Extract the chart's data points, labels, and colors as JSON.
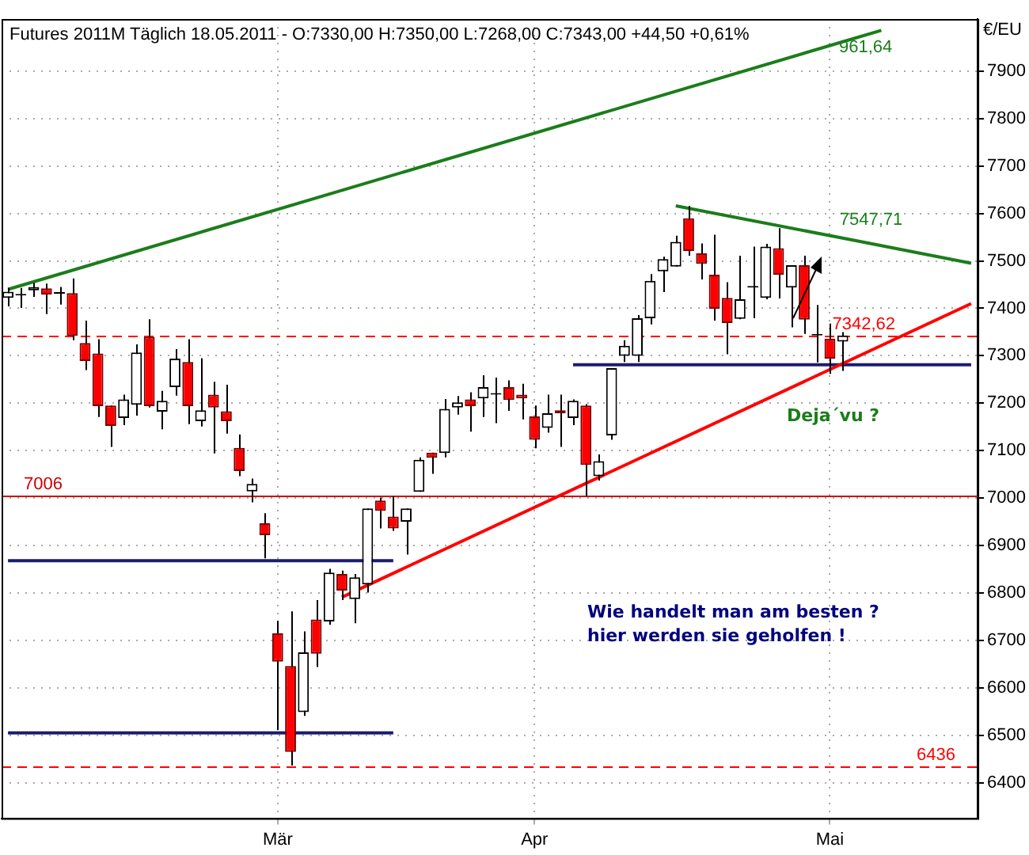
{
  "chart_data": {
    "type": "candlestick",
    "title": "Futures 2011M Täglich  18.05.2011 - O:7330,00 H:7350,00 L:7268,00 C:7343,00 +44,50 +0,61%",
    "ylabel": "€/EU",
    "categories": [
      null,
      null,
      null,
      null,
      null,
      null,
      null,
      null,
      null,
      null,
      null,
      null,
      null,
      null,
      null,
      null,
      null,
      null,
      null,
      null,
      null,
      "Mär",
      null,
      null,
      null,
      null,
      null,
      null,
      null,
      null,
      null,
      null,
      null,
      null,
      null,
      null,
      null,
      null,
      null,
      null,
      null,
      "Apr",
      null,
      null,
      null,
      null,
      null,
      null,
      null,
      null,
      null,
      null,
      null,
      null,
      null,
      null,
      null,
      null,
      null,
      null,
      null,
      null,
      null,
      null,
      "Mai",
      null,
      null,
      null,
      null,
      null,
      null,
      null,
      null,
      null,
      null,
      null
    ],
    "ohlc": [
      [
        7422,
        7443,
        7404,
        7435
      ],
      [
        7427,
        7443,
        7401,
        7427
      ],
      [
        7438,
        7454,
        7424,
        7445
      ],
      [
        7442,
        7452,
        7388,
        7429
      ],
      [
        7431,
        7445,
        7408,
        7431
      ],
      [
        7432,
        7463,
        7333,
        7342
      ],
      [
        7327,
        7374,
        7270,
        7289
      ],
      [
        7305,
        7335,
        7171,
        7194
      ],
      [
        7195,
        7195,
        7108,
        7152
      ],
      [
        7169,
        7218,
        7154,
        7208
      ],
      [
        7197,
        7324,
        7174,
        7307
      ],
      [
        7340,
        7377,
        7191,
        7194
      ],
      [
        7182,
        7226,
        7145,
        7205
      ],
      [
        7234,
        7314,
        7216,
        7294
      ],
      [
        7287,
        7335,
        7156,
        7194
      ],
      [
        7162,
        7295,
        7151,
        7185
      ],
      [
        7218,
        7245,
        7094,
        7191
      ],
      [
        7183,
        7239,
        7136,
        7162
      ],
      [
        7106,
        7134,
        7046,
        7057
      ],
      [
        7014,
        7041,
        6991,
        7030
      ],
      [
        6947,
        6968,
        6873,
        6922
      ],
      [
        6715,
        6741,
        6511,
        6655
      ],
      [
        6646,
        6761,
        6436,
        6465
      ],
      [
        6549,
        6719,
        6541,
        6675
      ],
      [
        6744,
        6785,
        6644,
        6672
      ],
      [
        6740,
        6851,
        6733,
        6843
      ],
      [
        6840,
        6847,
        6785,
        6805
      ],
      [
        6787,
        6840,
        6736,
        6833
      ],
      [
        6818,
        6978,
        6801,
        6978
      ],
      [
        6995,
        7001,
        6936,
        6973
      ],
      [
        6961,
        7003,
        6931,
        6936
      ],
      [
        6950,
        6978,
        6881,
        6978
      ],
      [
        7013,
        7086,
        7013,
        7081
      ],
      [
        7096,
        7096,
        7051,
        7085
      ],
      [
        7095,
        7209,
        7086,
        7188
      ],
      [
        7191,
        7215,
        7176,
        7202
      ],
      [
        7208,
        7223,
        7140,
        7194
      ],
      [
        7210,
        7259,
        7171,
        7234
      ],
      [
        7218,
        7254,
        7158,
        7218
      ],
      [
        7234,
        7248,
        7184,
        7207
      ],
      [
        7218,
        7241,
        7166,
        7210
      ],
      [
        7172,
        7195,
        7105,
        7123
      ],
      [
        7148,
        7218,
        7138,
        7179
      ],
      [
        7185,
        7218,
        7108,
        7179
      ],
      [
        7169,
        7208,
        7154,
        7205
      ],
      [
        7195,
        7198,
        7004,
        7070
      ],
      [
        7046,
        7092,
        7037,
        7078
      ],
      [
        7132,
        7274,
        7123,
        7274
      ],
      [
        7300,
        7333,
        7287,
        7321
      ],
      [
        7300,
        7386,
        7287,
        7379
      ],
      [
        7379,
        7472,
        7366,
        7458
      ],
      [
        7478,
        7509,
        7434,
        7504
      ],
      [
        7488,
        7553,
        7488,
        7540
      ],
      [
        7590,
        7616,
        7511,
        7521
      ],
      [
        7516,
        7537,
        7461,
        7494
      ],
      [
        7471,
        7555,
        7374,
        7399
      ],
      [
        7422,
        7455,
        7303,
        7369
      ],
      [
        7378,
        7511,
        7377,
        7419
      ],
      [
        7444,
        7530,
        7379,
        7444
      ],
      [
        7422,
        7536,
        7419,
        7530
      ],
      [
        7527,
        7569,
        7421,
        7471
      ],
      [
        7444,
        7491,
        7360,
        7491
      ],
      [
        7491,
        7511,
        7346,
        7376
      ],
      [
        7343,
        7407,
        7286,
        7343
      ],
      [
        7336,
        7368,
        7262,
        7294
      ],
      [
        7330,
        7350,
        7268,
        7343
      ],
      null,
      null,
      null,
      null,
      null,
      null,
      null,
      null,
      null,
      null
    ],
    "series": [
      {
        "type": "line",
        "color": "#1b7d1b",
        "values": [
          7440,
          null,
          null,
          null,
          null,
          null,
          null,
          null,
          null,
          null,
          null,
          null,
          null,
          null,
          null,
          null,
          null,
          null,
          null,
          null,
          null,
          null,
          null,
          null,
          null,
          null,
          null,
          null,
          null,
          null,
          null,
          null,
          null,
          null,
          null,
          null,
          null,
          null,
          null,
          null,
          null,
          null,
          null,
          null,
          null,
          null,
          null,
          null,
          null,
          null,
          null,
          null,
          null,
          null,
          null,
          null,
          null,
          null,
          null,
          null,
          null,
          null,
          null,
          null,
          null,
          7962,
          null,
          null,
          7986,
          null,
          null,
          null,
          null,
          null,
          null,
          null
        ]
      },
      {
        "type": "line",
        "color": "#1b7d1b",
        "values": [
          null,
          null,
          null,
          null,
          null,
          null,
          null,
          null,
          null,
          null,
          null,
          null,
          null,
          null,
          null,
          null,
          null,
          null,
          null,
          null,
          null,
          null,
          null,
          null,
          null,
          null,
          null,
          null,
          null,
          null,
          null,
          null,
          null,
          null,
          null,
          null,
          null,
          null,
          null,
          null,
          null,
          null,
          null,
          null,
          null,
          null,
          null,
          null,
          null,
          null,
          null,
          null,
          7616,
          null,
          null,
          null,
          null,
          null,
          null,
          null,
          null,
          null,
          null,
          null,
          null,
          7548,
          null,
          null,
          null,
          null,
          null,
          null,
          null,
          null,
          null,
          7495
        ]
      },
      {
        "type": "line",
        "color": "#ff0000",
        "values": [
          null,
          null,
          null,
          null,
          null,
          null,
          null,
          null,
          null,
          null,
          null,
          null,
          null,
          null,
          null,
          null,
          null,
          null,
          null,
          null,
          null,
          null,
          null,
          null,
          null,
          null,
          6791,
          null,
          null,
          null,
          null,
          null,
          null,
          null,
          null,
          null,
          null,
          null,
          null,
          null,
          null,
          null,
          null,
          null,
          null,
          null,
          null,
          null,
          null,
          null,
          null,
          null,
          null,
          null,
          null,
          null,
          null,
          null,
          null,
          null,
          null,
          null,
          null,
          null,
          null,
          null,
          null,
          null,
          null,
          null,
          null,
          null,
          null,
          null,
          null,
          7410
        ]
      },
      {
        "type": "line",
        "color": "#1c1c70",
        "values": [
          6868,
          null,
          null,
          null,
          null,
          null,
          null,
          null,
          null,
          null,
          null,
          null,
          null,
          null,
          null,
          null,
          null,
          null,
          null,
          null,
          null,
          null,
          null,
          null,
          null,
          null,
          null,
          null,
          null,
          null,
          6868,
          null,
          null,
          null,
          null,
          null,
          null,
          null,
          null,
          null,
          null,
          null,
          null,
          null,
          null,
          null,
          null,
          null,
          null,
          null,
          null,
          null,
          null,
          null,
          null,
          null,
          null,
          null,
          null,
          null,
          null,
          null,
          null,
          null,
          null,
          null,
          null,
          null,
          null,
          null,
          null,
          null,
          null,
          null,
          null,
          null
        ]
      },
      {
        "type": "line",
        "color": "#1c1c70",
        "values": [
          6505,
          null,
          null,
          null,
          null,
          null,
          null,
          null,
          null,
          null,
          null,
          null,
          null,
          null,
          null,
          null,
          null,
          null,
          null,
          null,
          null,
          null,
          null,
          null,
          null,
          null,
          null,
          null,
          null,
          null,
          6505,
          null,
          null,
          null,
          null,
          null,
          null,
          null,
          null,
          null,
          null,
          null,
          null,
          null,
          null,
          null,
          null,
          null,
          null,
          null,
          null,
          null,
          null,
          null,
          null,
          null,
          null,
          null,
          null,
          null,
          null,
          null,
          null,
          null,
          null,
          null,
          null,
          null,
          null,
          null,
          null,
          null,
          null,
          null,
          null,
          null
        ]
      },
      {
        "type": "line",
        "color": "#1c1c70",
        "values": [
          null,
          null,
          null,
          null,
          null,
          null,
          null,
          null,
          null,
          null,
          null,
          null,
          null,
          null,
          null,
          null,
          null,
          null,
          null,
          null,
          null,
          null,
          null,
          null,
          null,
          null,
          null,
          null,
          null,
          null,
          null,
          null,
          null,
          null,
          null,
          null,
          null,
          null,
          null,
          null,
          null,
          null,
          null,
          null,
          7281,
          null,
          null,
          null,
          null,
          null,
          null,
          null,
          null,
          null,
          null,
          null,
          null,
          null,
          null,
          null,
          null,
          null,
          null,
          null,
          null,
          null,
          null,
          null,
          null,
          null,
          null,
          null,
          null,
          null,
          null,
          7281
        ]
      }
    ],
    "ylim": [
      6325,
      8010
    ],
    "yticks": [
      6400,
      6500,
      6600,
      6700,
      6800,
      6900,
      7000,
      7100,
      7200,
      7300,
      7400,
      7500,
      7600,
      7700,
      7800,
      7900
    ],
    "ref_lines": [
      {
        "axis": "y",
        "value": 7006,
        "label": "7006",
        "color": "#cc0000",
        "line_style": "solid"
      },
      {
        "axis": "y",
        "value": 7342.62,
        "label": "7342,62",
        "color": "#ff0000",
        "line_style": "dashed"
      },
      {
        "axis": "y",
        "value": 6436,
        "label": "6436",
        "color": "#ff0000",
        "line_style": "dashed"
      }
    ],
    "annotations": [
      "Deja´vu ?",
      "Wie handelt man am besten ?",
      "hier werden sie geholfen !",
      {
        "text": "7547,71",
        "y": 7548
      },
      "961,64"
    ],
    "grid": true
  }
}
